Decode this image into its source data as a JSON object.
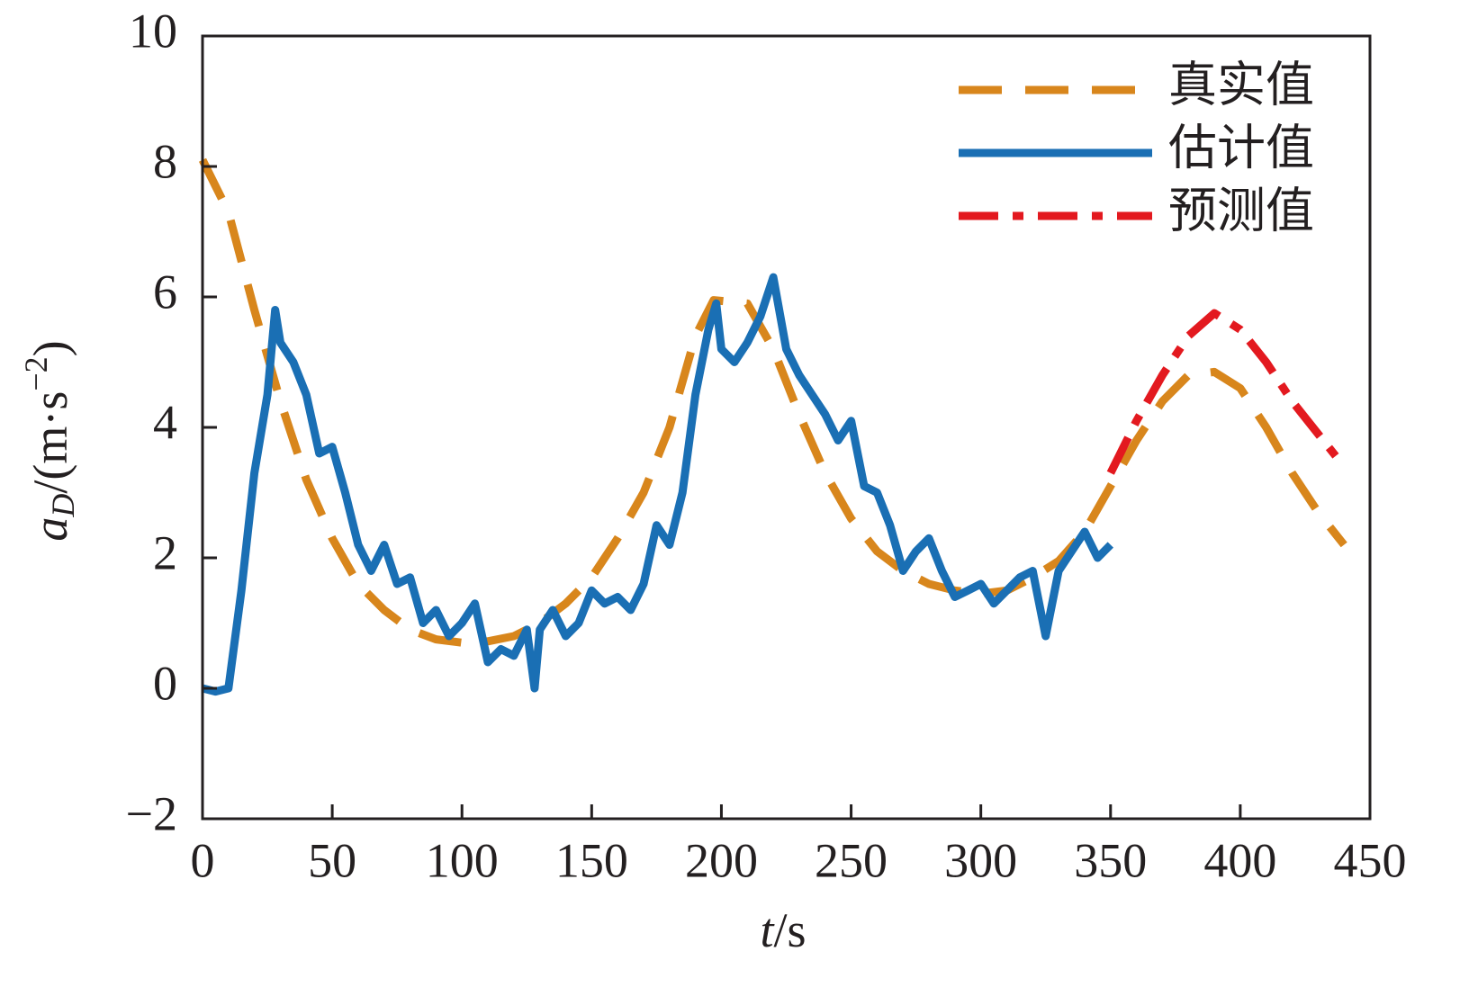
{
  "chart_data": {
    "type": "line",
    "x_label": {
      "symbol": "t",
      "unit": "/s"
    },
    "y_label": {
      "symbol": "a",
      "subscript": "D",
      "unit": "/(m·s",
      "power": "−2",
      "close": ")"
    },
    "xlim": [
      0,
      450
    ],
    "xticks": [
      0,
      50,
      100,
      150,
      200,
      250,
      300,
      350,
      400,
      450
    ],
    "ylim": [
      -2,
      10
    ],
    "yticks": [
      {
        "value": -2,
        "label": "−2"
      },
      0,
      2,
      4,
      6,
      8,
      10
    ],
    "legend": "upper right",
    "series": [
      {
        "name": "真实值",
        "color": "#d8861c",
        "style": "dashed",
        "x": [
          0,
          10,
          20,
          30,
          40,
          50,
          60,
          70,
          80,
          90,
          100,
          110,
          120,
          130,
          140,
          150,
          160,
          170,
          180,
          190,
          197,
          210,
          220,
          230,
          240,
          250,
          260,
          270,
          280,
          290,
          300,
          310,
          320,
          330,
          340,
          350,
          360,
          370,
          380,
          390,
          400,
          410,
          420,
          430,
          440
        ],
        "values": [
          8.1,
          7.3,
          5.8,
          4.4,
          3.2,
          2.3,
          1.6,
          1.2,
          0.9,
          0.75,
          0.7,
          0.72,
          0.8,
          1.0,
          1.3,
          1.7,
          2.3,
          3.0,
          4.0,
          5.4,
          5.95,
          5.9,
          5.2,
          4.2,
          3.3,
          2.6,
          2.1,
          1.8,
          1.6,
          1.5,
          1.45,
          1.5,
          1.7,
          1.95,
          2.4,
          3.1,
          3.8,
          4.4,
          4.8,
          4.85,
          4.6,
          4.0,
          3.3,
          2.7,
          2.2
        ]
      },
      {
        "name": "估计值",
        "color": "#1a6fb4",
        "style": "solid",
        "x": [
          0,
          5,
          10,
          15,
          20,
          25,
          28,
          30,
          35,
          40,
          45,
          50,
          55,
          60,
          65,
          70,
          75,
          80,
          85,
          90,
          95,
          100,
          105,
          110,
          115,
          120,
          125,
          128,
          130,
          135,
          140,
          145,
          150,
          155,
          160,
          165,
          170,
          175,
          180,
          185,
          190,
          195,
          198,
          200,
          205,
          210,
          215,
          220,
          225,
          230,
          235,
          240,
          245,
          250,
          255,
          260,
          265,
          270,
          275,
          280,
          285,
          290,
          295,
          300,
          305,
          310,
          315,
          320,
          325,
          330,
          335,
          340,
          345,
          350
        ],
        "values": [
          0,
          -0.05,
          0,
          1.5,
          3.3,
          4.5,
          5.8,
          5.3,
          5.0,
          4.5,
          3.6,
          3.7,
          3.0,
          2.2,
          1.8,
          2.2,
          1.6,
          1.7,
          1.0,
          1.2,
          0.8,
          1.0,
          1.3,
          0.4,
          0.6,
          0.5,
          0.9,
          0.0,
          0.9,
          1.2,
          0.8,
          1.0,
          1.5,
          1.3,
          1.4,
          1.2,
          1.6,
          2.5,
          2.2,
          3.0,
          4.5,
          5.5,
          5.9,
          5.2,
          5.0,
          5.3,
          5.7,
          6.3,
          5.2,
          4.8,
          4.5,
          4.2,
          3.8,
          4.1,
          3.1,
          3.0,
          2.5,
          1.8,
          2.1,
          2.3,
          1.8,
          1.4,
          1.5,
          1.6,
          1.3,
          1.5,
          1.7,
          1.8,
          0.8,
          1.8,
          2.1,
          2.4,
          2.0,
          2.2
        ]
      },
      {
        "name": "预测值",
        "color": "#e3191f",
        "style": "dashdot",
        "x": [
          350,
          360,
          370,
          380,
          390,
          400,
          410,
          420,
          430,
          440
        ],
        "values": [
          3.3,
          4.1,
          4.8,
          5.4,
          5.75,
          5.5,
          5.0,
          4.4,
          3.9,
          3.4
        ]
      }
    ]
  }
}
